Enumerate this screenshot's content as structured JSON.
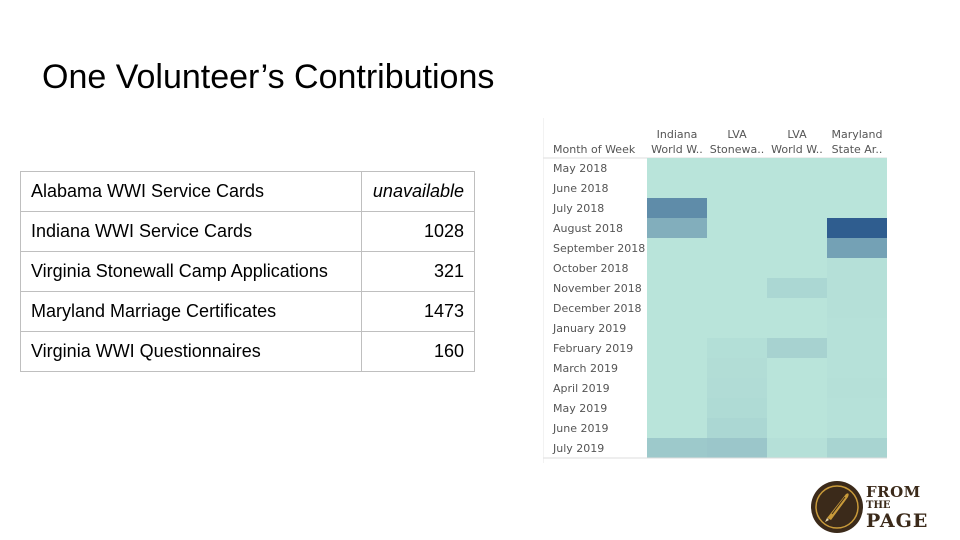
{
  "title": "One Volunteer’s Contributions",
  "contributions": [
    {
      "label": "Alabama WWI Service Cards",
      "value": "unavailable"
    },
    {
      "label": "Indiana WWI Service Cards",
      "value": "1028"
    },
    {
      "label": "Virginia Stonewall Camp Applications",
      "value": "321"
    },
    {
      "label": "Maryland Marriage Certificates",
      "value": "1473"
    },
    {
      "label": "Virginia WWI Questionnaires",
      "value": "160"
    }
  ],
  "chart_data": {
    "type": "heatmap",
    "row_header": "Month of Week",
    "columns": [
      {
        "line1": "Indiana",
        "line2": "World W.."
      },
      {
        "line1": "LVA",
        "line2": "Stonewa.."
      },
      {
        "line1": "LVA",
        "line2": "World W.."
      },
      {
        "line1": "Maryland",
        "line2": "State Ar.."
      }
    ],
    "rows": [
      "May 2018",
      "June 2018",
      "July 2018",
      "August 2018",
      "September 2018",
      "October 2018",
      "November 2018",
      "December 2018",
      "January 2019",
      "February 2019",
      "March 2019",
      "April 2019",
      "May 2019",
      "June 2019",
      "July 2019"
    ],
    "values": [
      [
        0,
        0,
        0,
        0
      ],
      [
        0,
        0,
        0,
        0
      ],
      [
        0.65,
        0,
        0,
        0
      ],
      [
        0.4,
        0,
        0,
        1.0
      ],
      [
        0,
        0,
        0,
        0.5
      ],
      [
        0,
        0,
        0,
        0.03
      ],
      [
        0,
        0,
        0.1,
        0.03
      ],
      [
        0,
        0,
        0,
        0.03
      ],
      [
        0,
        0,
        0,
        0.02
      ],
      [
        0,
        0.04,
        0.13,
        0.02
      ],
      [
        0,
        0.05,
        0,
        0.02
      ],
      [
        0,
        0.06,
        0,
        0.03
      ],
      [
        0,
        0.07,
        0,
        0.02
      ],
      [
        0,
        0.1,
        0,
        0.02
      ],
      [
        0.2,
        0.22,
        0.03,
        0.12
      ]
    ],
    "color_low": "#b9e4da",
    "color_high": "#2f5d8f"
  },
  "logo": {
    "line1": "FROM",
    "line2": "THE",
    "line3": "PAGE"
  }
}
